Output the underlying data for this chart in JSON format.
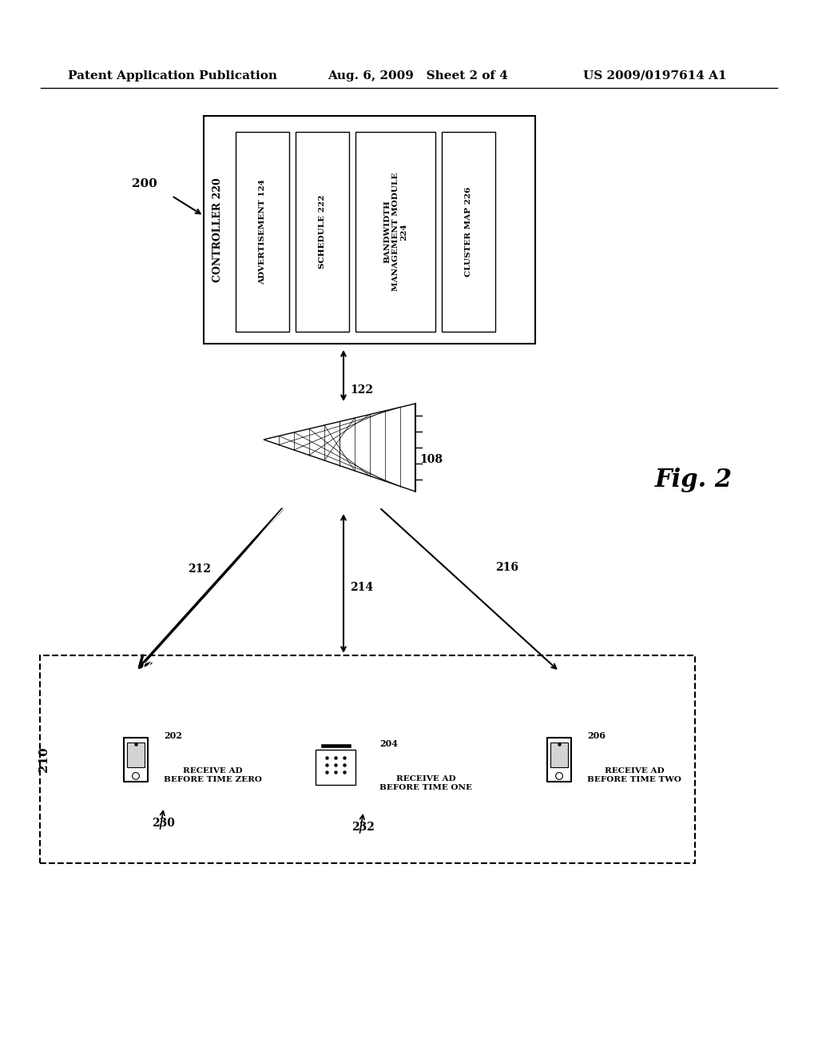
{
  "bg_color": "#ffffff",
  "header_left": "Patent Application Publication",
  "header_mid": "Aug. 6, 2009   Sheet 2 of 4",
  "header_right": "US 2009/0197614 A1",
  "fig_label": "Fig. 2",
  "label_200": "200",
  "label_108": "108",
  "label_122": "122",
  "label_210": "210",
  "label_212": "212",
  "label_214": "214",
  "label_216": "216",
  "label_202": "202",
  "label_204": "204",
  "label_206": "206",
  "label_230": "230",
  "label_232": "232",
  "controller_box_label": "CONTROLLER 220",
  "module_labels": [
    "ADVERTISEMENT 124",
    "SCHEDULE 222",
    "BANDWIDTH\nMANAGEMENT MODULE\n224",
    "CLUSTER MAP 226"
  ],
  "device_labels": [
    "RECEIVE AD\nBEFORE TIME ZERO",
    "RECEIVE AD\nBEFORE TIME ONE",
    "RECEIVE AD\nBEFORE TIME TWO"
  ]
}
